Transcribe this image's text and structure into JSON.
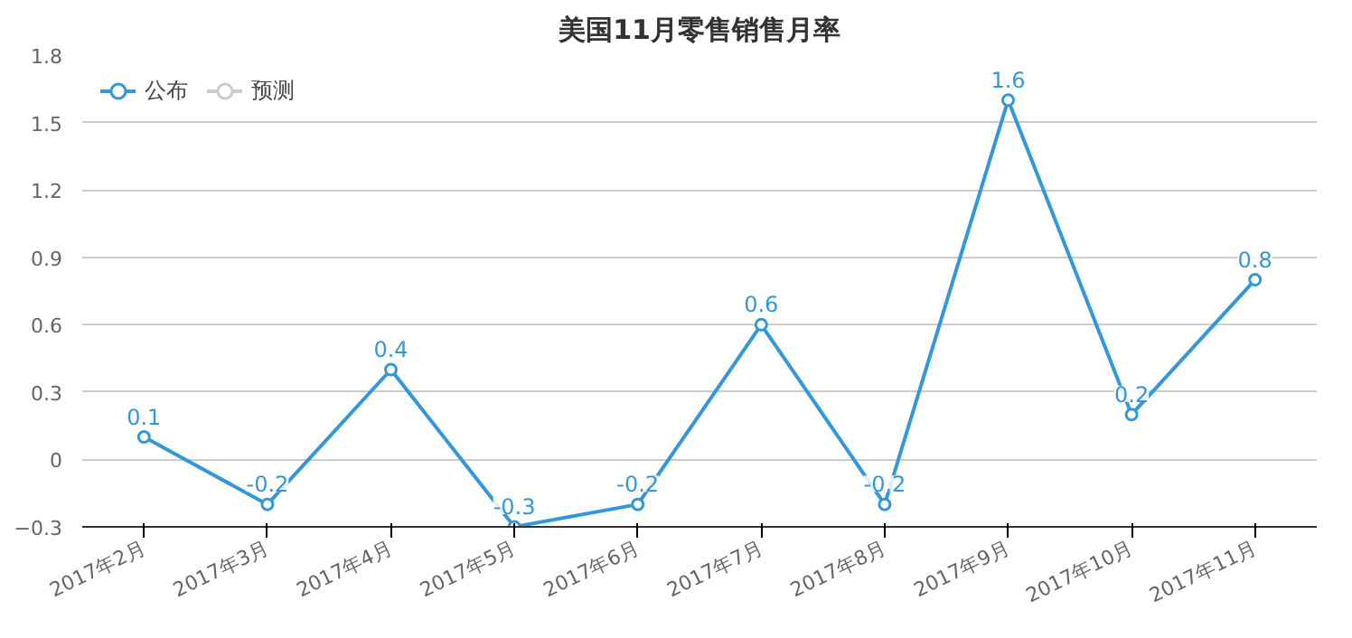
{
  "chart_data": {
    "type": "line",
    "title": "美国11月零售销售月率",
    "categories": [
      "2017年2月",
      "2017年3月",
      "2017年4月",
      "2017年5月",
      "2017年6月",
      "2017年7月",
      "2017年8月",
      "2017年9月",
      "2017年10月",
      "2017年11月"
    ],
    "series": [
      {
        "name": "公布",
        "color": "#3398db",
        "values": [
          0.1,
          -0.2,
          0.4,
          -0.3,
          -0.2,
          0.6,
          -0.2,
          1.6,
          0.2,
          0.8
        ]
      },
      {
        "name": "预测",
        "color": "#cccccc",
        "values": [
          null,
          null,
          null,
          null,
          null,
          null,
          null,
          null,
          null,
          null
        ]
      }
    ],
    "ylim": [
      -0.3,
      1.8
    ],
    "yticks": [
      -0.3,
      0,
      0.3,
      0.6,
      0.9,
      1.2,
      1.5,
      1.8
    ],
    "grid": "y",
    "legend": "top left",
    "marker": "circle",
    "line_style": "solid",
    "data_labels": true
  }
}
